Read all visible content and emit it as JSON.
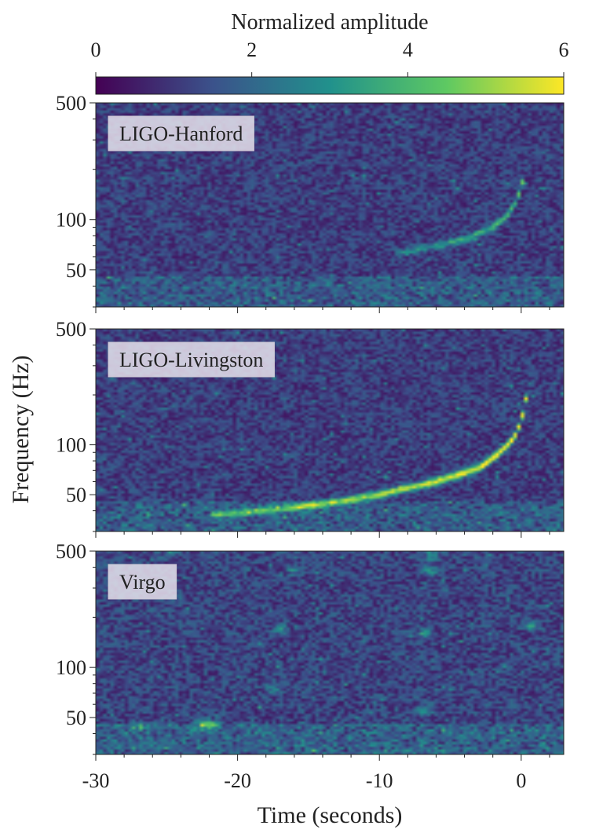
{
  "colorbar": {
    "label": "Normalized amplitude",
    "min": 0,
    "max": 6,
    "ticks": [
      0,
      2,
      4,
      6
    ],
    "tick_labels": [
      "0",
      "2",
      "4",
      "6"
    ],
    "colormap": "viridis",
    "colors": [
      "#440154",
      "#3b528b",
      "#21918c",
      "#5ec962",
      "#fde725"
    ]
  },
  "chart_data": {
    "type": "heatmap",
    "xlabel": "Time (seconds)",
    "ylabel": "Frequency (Hz)",
    "xlim": [
      -30,
      3
    ],
    "ylim": [
      30,
      500
    ],
    "yscale": "log",
    "x_ticks": [
      -30,
      -20,
      -10,
      0
    ],
    "x_tick_labels": [
      "-30",
      "-20",
      "-10",
      "0"
    ],
    "y_ticks": [
      50,
      100,
      500
    ],
    "y_tick_labels": [
      "50",
      "100",
      "500"
    ],
    "grid": false,
    "panels": [
      {
        "label": "LIGO-Hanford",
        "background_level": 1.6,
        "chirp": {
          "points": [
            [
              -9,
              62
            ],
            [
              -6,
              70
            ],
            [
              -4,
              76
            ],
            [
              -2,
              90
            ],
            [
              -1,
              105
            ],
            [
              -0.3,
              130
            ],
            [
              0.2,
              180
            ],
            [
              0.3,
              240
            ]
          ],
          "peak_amplitude": 3.2
        },
        "hotspots": []
      },
      {
        "label": "LIGO-Livingston",
        "background_level": 1.6,
        "chirp": {
          "points": [
            [
              -22,
              38
            ],
            [
              -18,
              40
            ],
            [
              -14,
              44
            ],
            [
              -10,
              50
            ],
            [
              -6,
              60
            ],
            [
              -3,
              72
            ],
            [
              -1.5,
              90
            ],
            [
              -0.5,
              110
            ],
            [
              0,
              140
            ],
            [
              0.4,
              200
            ]
          ],
          "peak_amplitude": 5.6
        },
        "hotspots": []
      },
      {
        "label": "Virgo",
        "background_level": 1.8,
        "chirp": null,
        "hotspots": [
          [
            -22.5,
            46,
            5.0
          ],
          [
            -21.8,
            45,
            4.5
          ],
          [
            -6.5,
            380,
            4.0
          ],
          [
            -6.3,
            470,
            3.8
          ],
          [
            -6.8,
            160,
            3.5
          ],
          [
            0.8,
            180,
            3.8
          ],
          [
            -16,
            380,
            3.2
          ],
          [
            -17,
            170,
            3.4
          ],
          [
            -24.8,
            480,
            3.0
          ],
          [
            -17.5,
            75,
            3.3
          ],
          [
            -6.8,
            55,
            3.6
          ],
          [
            -27,
            44,
            3.2
          ]
        ]
      }
    ]
  }
}
